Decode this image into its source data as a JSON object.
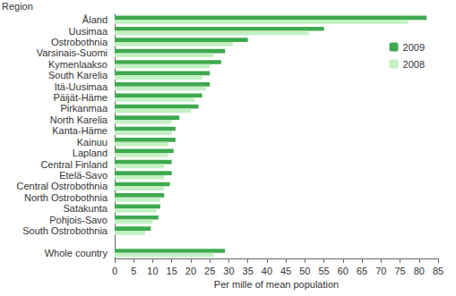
{
  "chart_data": {
    "type": "bar",
    "orientation": "horizontal",
    "x_label": "Per mille of mean population",
    "y_label": "Region",
    "categories": [
      "Åland",
      "Uusimaa",
      "Ostrobothnia",
      "Varsinais-Suomi",
      "Kymenlaakso",
      "South Karelia",
      "Itä-Uusimaa",
      "Päijät-Häme",
      "Pirkanmaa",
      "North Karelia",
      "Kanta-Häme",
      "Kainuu",
      "Lapland",
      "Central Finland",
      "Etelä-Savo",
      "Central Ostrobothnia",
      "North Ostrobothnia",
      "Satakunta",
      "Pohjois-Savo",
      "South Ostrobothnia",
      null,
      "Whole country"
    ],
    "series": [
      {
        "name": "2009",
        "color": "#3fa94f",
        "values": [
          82,
          55,
          35,
          29,
          28,
          25,
          25,
          23,
          22,
          17,
          16,
          16,
          15.5,
          15,
          15,
          14.5,
          13,
          12,
          11.5,
          9.5,
          null,
          29
        ]
      },
      {
        "name": "2008",
        "color": "#c2f0c2",
        "values": [
          77,
          51,
          31,
          26,
          25,
          23,
          24,
          21,
          20,
          15,
          15,
          14,
          14,
          13,
          13,
          13,
          12,
          11,
          10,
          8,
          null,
          26
        ]
      }
    ],
    "xlim": [
      0,
      85
    ],
    "xticks": [
      0,
      5,
      10,
      15,
      20,
      25,
      30,
      35,
      40,
      45,
      50,
      55,
      60,
      65,
      70,
      75,
      80,
      85
    ],
    "grid": false,
    "legend": "right"
  }
}
